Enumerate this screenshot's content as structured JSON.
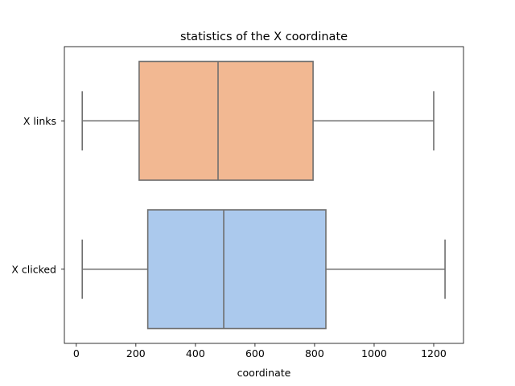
{
  "chart_data": {
    "type": "boxplot",
    "title": "statistics of the X coordinate",
    "xlabel": "coordinate",
    "ylabel": "",
    "xlim": [
      -40,
      1300
    ],
    "xticks": [
      0,
      200,
      400,
      600,
      800,
      1000,
      1200
    ],
    "grid": false,
    "orientation": "horizontal",
    "categories": [
      "X links",
      "X clicked"
    ],
    "series": [
      {
        "label": "X links",
        "whisker_low": 20,
        "q1": 211,
        "median": 476,
        "q3": 795,
        "whisker_high": 1200,
        "color": "#f2b892"
      },
      {
        "label": "X clicked",
        "whisker_low": 20,
        "q1": 240,
        "median": 495,
        "q3": 838,
        "whisker_high": 1238,
        "color": "#abc9ed"
      }
    ],
    "line_color": "#6f6f6f"
  }
}
